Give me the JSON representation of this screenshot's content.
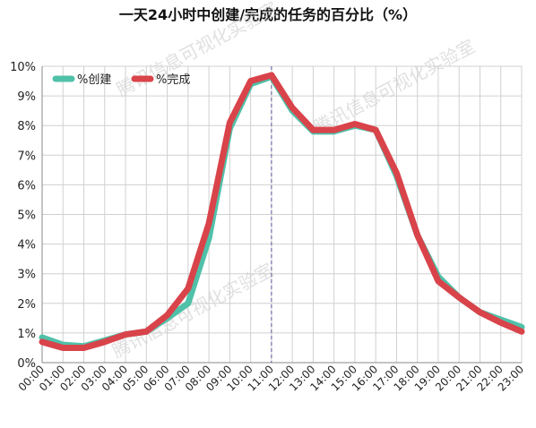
{
  "chart_data": {
    "type": "line",
    "title": "一天24小时中创建/完成的任务的百分比（%）",
    "xlabel": "",
    "ylabel": "",
    "x": [
      "00:00",
      "01:00",
      "02:00",
      "03:00",
      "04:00",
      "05:00",
      "06:00",
      "07:00",
      "08:00",
      "09:00",
      "10:00",
      "11:00",
      "12:00",
      "13:00",
      "14:00",
      "15:00",
      "16:00",
      "17:00",
      "18:00",
      "19:00",
      "20:00",
      "21:00",
      "22:00",
      "23:00"
    ],
    "y_ticks": [
      "0%",
      "1%",
      "2%",
      "3%",
      "4%",
      "5%",
      "6%",
      "7%",
      "8%",
      "9%",
      "10%"
    ],
    "ylim": [
      0,
      10
    ],
    "grid": true,
    "legend": "top-left",
    "reference_line_x": "11:00",
    "series": [
      {
        "name": "%创建",
        "color": "#4fc1a9",
        "values": [
          0.85,
          0.6,
          0.55,
          0.75,
          0.95,
          1.05,
          1.5,
          2.0,
          4.2,
          7.9,
          9.4,
          9.65,
          8.5,
          7.8,
          7.8,
          8.0,
          7.85,
          6.3,
          4.3,
          2.9,
          2.2,
          1.7,
          1.45,
          1.2
        ]
      },
      {
        "name": "%完成",
        "color": "#d9434a",
        "values": [
          0.7,
          0.5,
          0.5,
          0.7,
          0.95,
          1.05,
          1.6,
          2.5,
          4.7,
          8.1,
          9.5,
          9.7,
          8.6,
          7.85,
          7.85,
          8.05,
          7.85,
          6.4,
          4.3,
          2.75,
          2.2,
          1.7,
          1.35,
          1.05
        ]
      }
    ]
  },
  "watermarks": [
    "腾讯信息可视化实验室",
    "腾讯信息可视化实验室",
    "腾讯信息可视化实验室"
  ]
}
